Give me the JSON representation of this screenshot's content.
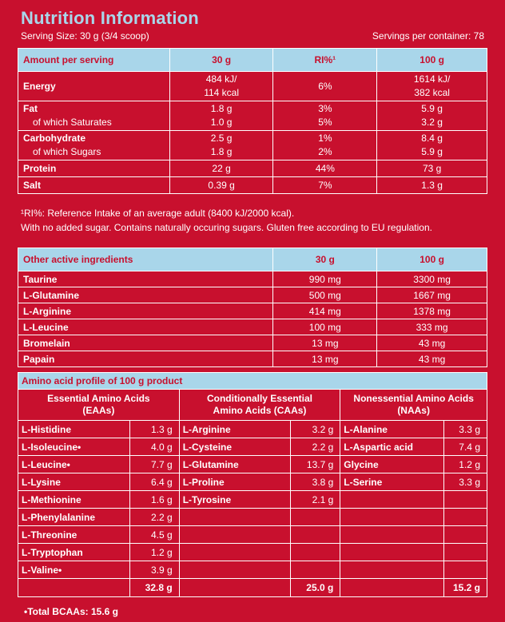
{
  "header": {
    "title": "Nutrition Information",
    "serving_size": "Serving Size: 30 g (3/4 scoop)",
    "servings": "Servings per container: 78"
  },
  "nutrition": {
    "headers": [
      "Amount per serving",
      "30 g",
      "RI%¹",
      "100 g"
    ],
    "energy": {
      "label": "Energy",
      "a1": "484 kJ/",
      "a2": "114 kcal",
      "ri": "6%",
      "b1": "1614 kJ/",
      "b2": "382 kcal"
    },
    "fat": {
      "label": "Fat",
      "sub": "of which Saturates",
      "a1": "1.8 g",
      "a2": "1.0 g",
      "r1": "3%",
      "r2": "5%",
      "b1": "5.9 g",
      "b2": "3.2 g"
    },
    "carb": {
      "label": "Carbohydrate",
      "sub": "of which Sugars",
      "a1": "2.5 g",
      "a2": "1.8 g",
      "r1": "1%",
      "r2": "2%",
      "b1": "8.4 g",
      "b2": "5.9 g"
    },
    "protein": {
      "label": "Protein",
      "a": "22 g",
      "ri": "44%",
      "b": "73 g"
    },
    "salt": {
      "label": "Salt",
      "a": "0.39 g",
      "ri": "7%",
      "b": "1.3 g"
    }
  },
  "notes": {
    "line1": "¹RI%: Reference Intake of an average adult (8400 kJ/2000 kcal).",
    "line2": "With no added sugar. Contains naturally occuring sugars. Gluten free according to EU regulation."
  },
  "active": {
    "headers": [
      "Other active ingredients",
      "30 g",
      "100 g"
    ],
    "rows": [
      {
        "name": "Taurine",
        "a": "990 mg",
        "b": "3300 mg"
      },
      {
        "name": "L-Glutamine",
        "a": "500 mg",
        "b": "1667 mg"
      },
      {
        "name": "L-Arginine",
        "a": "414 mg",
        "b": "1378 mg"
      },
      {
        "name": "L-Leucine",
        "a": "100 mg",
        "b": "333 mg"
      },
      {
        "name": "Bromelain",
        "a": "13 mg",
        "b": "43 mg"
      },
      {
        "name": "Papain",
        "a": "13 mg",
        "b": "43 mg"
      }
    ]
  },
  "amino": {
    "caption": "Amino acid profile of 100 g product",
    "groups": [
      {
        "l1": "Essential Amino Acids",
        "l2": "(EAAs)"
      },
      {
        "l1": "Conditionally Essential",
        "l2": "Amino Acids (CAAs)"
      },
      {
        "l1": "Nonessential Amino Acids",
        "l2": "(NAAs)"
      }
    ],
    "rows": [
      [
        {
          "n": "L-Histidine",
          "v": "1.3 g"
        },
        {
          "n": "L-Arginine",
          "v": "3.2 g"
        },
        {
          "n": "L-Alanine",
          "v": "3.3 g"
        }
      ],
      [
        {
          "n": "L-Isoleucine•",
          "v": "4.0 g"
        },
        {
          "n": "L-Cysteine",
          "v": "2.2 g"
        },
        {
          "n": "L-Aspartic acid",
          "v": "7.4 g"
        }
      ],
      [
        {
          "n": "L-Leucine•",
          "v": "7.7 g"
        },
        {
          "n": "L-Glutamine",
          "v": "13.7 g"
        },
        {
          "n": "Glycine",
          "v": "1.2 g"
        }
      ],
      [
        {
          "n": "L-Lysine",
          "v": "6.4 g"
        },
        {
          "n": "L-Proline",
          "v": "3.8 g"
        },
        {
          "n": "L-Serine",
          "v": "3.3 g"
        }
      ],
      [
        {
          "n": "L-Methionine",
          "v": "1.6 g"
        },
        {
          "n": "L-Tyrosine",
          "v": "2.1 g"
        },
        {
          "n": "",
          "v": ""
        }
      ],
      [
        {
          "n": "L-Phenylalanine",
          "v": "2.2 g"
        },
        {
          "n": "",
          "v": ""
        },
        {
          "n": "",
          "v": ""
        }
      ],
      [
        {
          "n": "L-Threonine",
          "v": "4.5 g"
        },
        {
          "n": "",
          "v": ""
        },
        {
          "n": "",
          "v": ""
        }
      ],
      [
        {
          "n": "L-Tryptophan",
          "v": "1.2 g"
        },
        {
          "n": "",
          "v": ""
        },
        {
          "n": "",
          "v": ""
        }
      ],
      [
        {
          "n": "L-Valine•",
          "v": "3.9 g"
        },
        {
          "n": "",
          "v": ""
        },
        {
          "n": "",
          "v": ""
        }
      ]
    ],
    "totals": [
      "32.8 g",
      "25.0 g",
      "15.2 g"
    ],
    "bcaa": "•Total BCAAs: 15.6 g"
  }
}
